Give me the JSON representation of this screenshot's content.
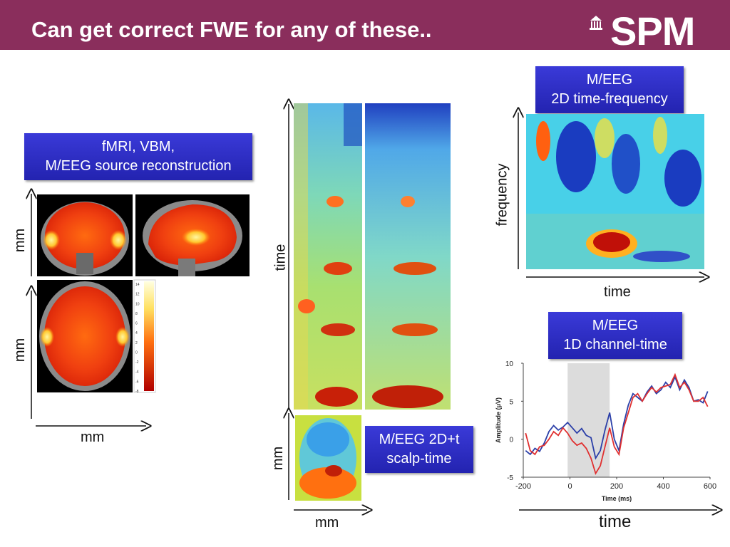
{
  "slide": {
    "title": "Can get correct FWE for any of these..",
    "logo_text": "SPM"
  },
  "boxes": {
    "fmri_line1": "fMRI, VBM,",
    "fmri_line2": "M/EEG source reconstruction",
    "tf_line1": "M/EEG",
    "tf_line2": "2D time-frequency",
    "ct_line1": "M/EEG",
    "ct_line2": "1D channel-time",
    "st_line1": "M/EEG 2D+t",
    "st_line2": "scalp-time"
  },
  "axis_labels": {
    "fmri_y_top": "mm",
    "fmri_y_bottom": "mm",
    "fmri_x": "mm",
    "scalp_time": "time",
    "scalp_y": "mm",
    "scalp_x": "mm",
    "tf_y": "frequency",
    "tf_x": "time",
    "ct_x": "time"
  },
  "colorbar_ticks": [
    "14",
    "12",
    "10",
    "8",
    "6",
    "4",
    "2",
    "0",
    "-2",
    "-4",
    "-6",
    "-8"
  ],
  "chart_data": {
    "type": "line",
    "xlabel": "Time (ms)",
    "ylabel": "Amplitude (μV)",
    "xlim": [
      -200,
      600
    ],
    "ylim": [
      -5,
      10
    ],
    "xticks": [
      "-200",
      "0",
      "200",
      "400",
      "600"
    ],
    "yticks": [
      "10",
      "5",
      "0",
      "-5"
    ],
    "shaded_interval": [
      -10,
      170
    ],
    "x": [
      -190,
      -170,
      -150,
      -130,
      -110,
      -90,
      -70,
      -50,
      -30,
      -10,
      10,
      30,
      50,
      70,
      90,
      110,
      130,
      150,
      170,
      190,
      210,
      230,
      250,
      270,
      290,
      310,
      330,
      350,
      370,
      390,
      410,
      430,
      450,
      470,
      490,
      510,
      530,
      550,
      570,
      590
    ],
    "series": [
      {
        "color": "#2b3fa8",
        "values": [
          -1.5,
          -2,
          -1.2,
          -1.6,
          -0.5,
          1,
          1.8,
          1.2,
          1.6,
          2.2,
          1.5,
          0.8,
          1.4,
          0.5,
          0.2,
          -2.5,
          -1.5,
          1.2,
          3.5,
          0,
          -1.5,
          2,
          4.5,
          6,
          5.5,
          5,
          6.2,
          7,
          6,
          6.5,
          7.5,
          6.8,
          8.2,
          6.5,
          7.8,
          6.8,
          5,
          5.2,
          4.8,
          6.3
        ]
      },
      {
        "color": "#e03030",
        "values": [
          0.8,
          -1.5,
          -2,
          -1,
          -0.8,
          0,
          1,
          0.5,
          1.5,
          0.8,
          -0.2,
          -0.8,
          -0.5,
          -1.2,
          -2.5,
          -4.5,
          -3.5,
          -1,
          1.5,
          -1,
          -2,
          1.5,
          3.5,
          5.5,
          6,
          5,
          6,
          6.8,
          6.2,
          6.8,
          7,
          7.2,
          8.5,
          6.8,
          7.5,
          6.5,
          5,
          5,
          5.5,
          4.3
        ]
      }
    ]
  }
}
